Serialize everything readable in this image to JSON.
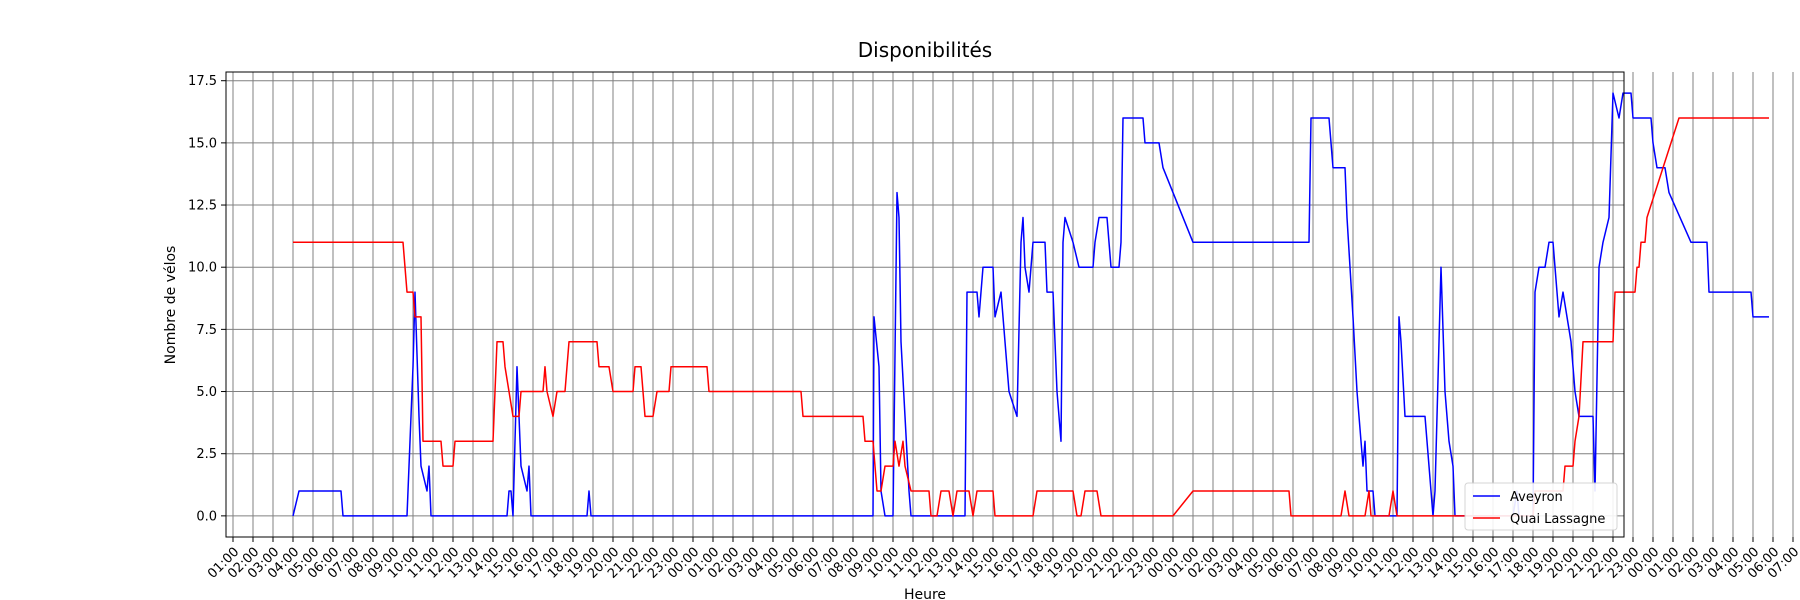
{
  "chart_data": {
    "type": "line",
    "title": "Disponibilités",
    "xlabel": "Heure",
    "ylabel": "Nombre de vélos",
    "x_tick_labels": [
      "01:00",
      "02:00",
      "03:00",
      "04:00",
      "05:00",
      "06:00",
      "07:00",
      "08:00",
      "09:00",
      "10:00",
      "11:00",
      "12:00",
      "13:00",
      "14:00",
      "15:00",
      "16:00",
      "17:00",
      "18:00",
      "19:00",
      "20:00",
      "21:00",
      "22:00",
      "23:00",
      "00:00",
      "01:00",
      "02:00",
      "03:00",
      "04:00",
      "05:00",
      "06:00",
      "07:00",
      "08:00",
      "09:00",
      "10:00",
      "11:00",
      "12:00",
      "13:00",
      "14:00",
      "15:00",
      "16:00",
      "17:00",
      "18:00",
      "19:00",
      "20:00",
      "21:00",
      "22:00",
      "23:00",
      "00:00",
      "01:00",
      "02:00",
      "03:00",
      "04:00",
      "05:00",
      "06:00",
      "07:00",
      "08:00",
      "09:00",
      "10:00",
      "11:00",
      "12:00",
      "13:00",
      "14:00",
      "15:00",
      "16:00",
      "17:00",
      "18:00",
      "19:00",
      "20:00",
      "21:00",
      "22:00",
      "23:00",
      "00:00",
      "01:00",
      "02:00",
      "03:00",
      "04:00",
      "05:00",
      "06:00",
      "07:00"
    ],
    "x_range_hours": [
      0.0,
      78.35
    ],
    "y_ticks": [
      0.0,
      2.5,
      5.0,
      7.5,
      10.0,
      12.5,
      15.0,
      17.5
    ],
    "y_tick_labels": [
      "0.0",
      "2.5",
      "5.0",
      "7.5",
      "10.0",
      "12.5",
      "15.0",
      "17.5"
    ],
    "ylim": [
      -0.85,
      17.85
    ],
    "grid": true,
    "legend_position": "lower right",
    "x_unit": "hours elapsed since the first tick (01:00)",
    "series": [
      {
        "name": "Aveyron",
        "color": "#0000ff",
        "points": [
          [
            3.0,
            0
          ],
          [
            3.3,
            1
          ],
          [
            5.4,
            1
          ],
          [
            5.5,
            0
          ],
          [
            8.7,
            0
          ],
          [
            9.0,
            6
          ],
          [
            9.1,
            9
          ],
          [
            9.3,
            4
          ],
          [
            9.4,
            2
          ],
          [
            9.7,
            1
          ],
          [
            9.8,
            2
          ],
          [
            9.9,
            0
          ],
          [
            13.7,
            0
          ],
          [
            13.8,
            1
          ],
          [
            13.9,
            1
          ],
          [
            14.0,
            0
          ],
          [
            14.2,
            6
          ],
          [
            14.4,
            2
          ],
          [
            14.7,
            1
          ],
          [
            14.8,
            2
          ],
          [
            14.9,
            0
          ],
          [
            17.7,
            0
          ],
          [
            17.8,
            1
          ],
          [
            17.9,
            0
          ],
          [
            32.0,
            0
          ],
          [
            32.05,
            8
          ],
          [
            32.3,
            6
          ],
          [
            32.4,
            1
          ],
          [
            32.6,
            0
          ],
          [
            33.0,
            0
          ],
          [
            33.2,
            13
          ],
          [
            33.3,
            12
          ],
          [
            33.4,
            7
          ],
          [
            33.6,
            4
          ],
          [
            33.8,
            1
          ],
          [
            33.9,
            0
          ],
          [
            36.6,
            0
          ],
          [
            36.7,
            9
          ],
          [
            37.2,
            9
          ],
          [
            37.3,
            8
          ],
          [
            37.5,
            10
          ],
          [
            38.0,
            10
          ],
          [
            38.1,
            8
          ],
          [
            38.4,
            9
          ],
          [
            38.5,
            8
          ],
          [
            38.6,
            7
          ],
          [
            38.8,
            5
          ],
          [
            39.2,
            4
          ],
          [
            39.4,
            11
          ],
          [
            39.5,
            12
          ],
          [
            39.6,
            10
          ],
          [
            39.8,
            9
          ],
          [
            40.0,
            11
          ],
          [
            40.6,
            11
          ],
          [
            40.7,
            9
          ],
          [
            41.0,
            9
          ],
          [
            41.2,
            5
          ],
          [
            41.4,
            3
          ],
          [
            41.5,
            11
          ],
          [
            41.6,
            12
          ],
          [
            42.0,
            11
          ],
          [
            42.3,
            10
          ],
          [
            43.0,
            10
          ],
          [
            43.1,
            11
          ],
          [
            43.3,
            12
          ],
          [
            43.7,
            12
          ],
          [
            43.9,
            10
          ],
          [
            44.3,
            10
          ],
          [
            44.4,
            11
          ],
          [
            44.5,
            16
          ],
          [
            45.5,
            16
          ],
          [
            45.6,
            15
          ],
          [
            46.3,
            15
          ],
          [
            46.5,
            14
          ],
          [
            48.0,
            11
          ],
          [
            53.8,
            11
          ],
          [
            53.9,
            16
          ],
          [
            54.8,
            16
          ],
          [
            55.0,
            14
          ],
          [
            55.6,
            14
          ],
          [
            55.7,
            12
          ],
          [
            56.0,
            8
          ],
          [
            56.2,
            5
          ],
          [
            56.5,
            2
          ],
          [
            56.6,
            3
          ],
          [
            56.7,
            1
          ],
          [
            57.0,
            1
          ],
          [
            57.1,
            0
          ],
          [
            58.2,
            0
          ],
          [
            58.3,
            8
          ],
          [
            58.4,
            7
          ],
          [
            58.6,
            4
          ],
          [
            59.6,
            4
          ],
          [
            59.8,
            2
          ],
          [
            59.9,
            1
          ],
          [
            60.0,
            0
          ],
          [
            60.1,
            1
          ],
          [
            60.4,
            10
          ],
          [
            60.6,
            5
          ],
          [
            60.8,
            3
          ],
          [
            61.0,
            2
          ],
          [
            61.1,
            0
          ],
          [
            64.0,
            0
          ],
          [
            64.2,
            1
          ],
          [
            64.3,
            0
          ],
          [
            65.0,
            0
          ],
          [
            65.1,
            9
          ],
          [
            65.3,
            10
          ],
          [
            65.6,
            10
          ],
          [
            65.8,
            11
          ],
          [
            66.0,
            11
          ],
          [
            66.3,
            8
          ],
          [
            66.5,
            9
          ],
          [
            66.9,
            7
          ],
          [
            67.1,
            5
          ],
          [
            67.3,
            4
          ],
          [
            68.0,
            4
          ],
          [
            68.1,
            1
          ],
          [
            68.3,
            10
          ],
          [
            68.5,
            11
          ],
          [
            68.8,
            12
          ],
          [
            69.0,
            17
          ],
          [
            69.3,
            16
          ],
          [
            69.5,
            17
          ],
          [
            69.9,
            17
          ],
          [
            70.0,
            16
          ],
          [
            70.9,
            16
          ],
          [
            71.0,
            15
          ],
          [
            71.2,
            14
          ],
          [
            71.6,
            14
          ],
          [
            71.8,
            13
          ],
          [
            72.9,
            11
          ],
          [
            73.7,
            11
          ],
          [
            73.8,
            9
          ],
          [
            75.9,
            9
          ],
          [
            76.0,
            8
          ],
          [
            76.8,
            8
          ]
        ]
      },
      {
        "name": "Quai Lassagne",
        "color": "#ff0000",
        "points": [
          [
            3.0,
            11
          ],
          [
            8.5,
            11
          ],
          [
            8.6,
            10
          ],
          [
            8.7,
            9
          ],
          [
            9.0,
            9
          ],
          [
            9.1,
            8
          ],
          [
            9.4,
            8
          ],
          [
            9.5,
            3
          ],
          [
            10.4,
            3
          ],
          [
            10.5,
            2
          ],
          [
            11.0,
            2
          ],
          [
            11.1,
            3
          ],
          [
            13.0,
            3
          ],
          [
            13.2,
            7
          ],
          [
            13.5,
            7
          ],
          [
            13.6,
            6
          ],
          [
            13.8,
            5
          ],
          [
            14.0,
            4
          ],
          [
            14.3,
            4
          ],
          [
            14.4,
            5
          ],
          [
            15.5,
            5
          ],
          [
            15.6,
            6
          ],
          [
            15.7,
            5
          ],
          [
            16.0,
            4
          ],
          [
            16.2,
            5
          ],
          [
            16.6,
            5
          ],
          [
            16.8,
            7
          ],
          [
            18.2,
            7
          ],
          [
            18.3,
            6
          ],
          [
            18.8,
            6
          ],
          [
            19.0,
            5
          ],
          [
            20.0,
            5
          ],
          [
            20.1,
            6
          ],
          [
            20.4,
            6
          ],
          [
            20.6,
            4
          ],
          [
            21.0,
            4
          ],
          [
            21.2,
            5
          ],
          [
            21.8,
            5
          ],
          [
            21.9,
            6
          ],
          [
            23.7,
            6
          ],
          [
            23.8,
            5
          ],
          [
            28.4,
            5
          ],
          [
            28.5,
            4
          ],
          [
            31.5,
            4
          ],
          [
            31.6,
            3
          ],
          [
            32.0,
            3
          ],
          [
            32.2,
            1
          ],
          [
            32.4,
            1
          ],
          [
            32.6,
            2
          ],
          [
            33.0,
            2
          ],
          [
            33.1,
            3
          ],
          [
            33.3,
            2
          ],
          [
            33.5,
            3
          ],
          [
            33.6,
            2
          ],
          [
            33.9,
            1
          ],
          [
            34.8,
            1
          ],
          [
            34.9,
            0
          ],
          [
            35.2,
            0
          ],
          [
            35.4,
            1
          ],
          [
            35.8,
            1
          ],
          [
            36.0,
            0
          ],
          [
            36.2,
            1
          ],
          [
            36.8,
            1
          ],
          [
            37.0,
            0
          ],
          [
            37.2,
            1
          ],
          [
            38.0,
            1
          ],
          [
            38.1,
            0
          ],
          [
            40.0,
            0
          ],
          [
            40.2,
            1
          ],
          [
            42.0,
            1
          ],
          [
            42.2,
            0
          ],
          [
            42.4,
            0
          ],
          [
            42.6,
            1
          ],
          [
            43.2,
            1
          ],
          [
            43.4,
            0
          ],
          [
            47.0,
            0
          ],
          [
            48.0,
            1
          ],
          [
            52.8,
            1
          ],
          [
            52.9,
            0
          ],
          [
            55.4,
            0
          ],
          [
            55.6,
            1
          ],
          [
            55.8,
            0
          ],
          [
            56.6,
            0
          ],
          [
            56.8,
            1
          ],
          [
            56.9,
            0
          ],
          [
            57.8,
            0
          ],
          [
            58.0,
            1
          ],
          [
            58.2,
            0
          ],
          [
            65.0,
            0
          ],
          [
            65.1,
            1
          ],
          [
            66.5,
            1
          ],
          [
            66.6,
            2
          ],
          [
            67.0,
            2
          ],
          [
            67.1,
            3
          ],
          [
            67.3,
            4
          ],
          [
            67.5,
            7
          ],
          [
            69.0,
            7
          ],
          [
            69.1,
            9
          ],
          [
            70.1,
            9
          ],
          [
            70.2,
            10
          ],
          [
            70.3,
            10
          ],
          [
            70.4,
            11
          ],
          [
            70.6,
            11
          ],
          [
            70.7,
            12
          ],
          [
            72.3,
            16
          ],
          [
            76.8,
            16
          ]
        ]
      }
    ]
  }
}
